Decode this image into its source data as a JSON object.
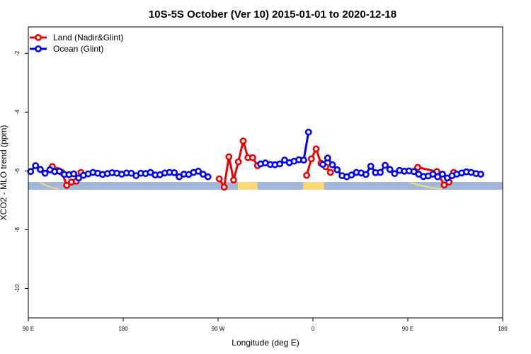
{
  "chart_data": {
    "type": "line",
    "title": "10S-5S October (Ver 10)   2015-01-01 to 2020-12-18",
    "xlabel": "Longitude (deg E)",
    "ylabel": "XCO2 - MLO trend (ppm)",
    "xlim": [
      90,
      450
    ],
    "ylim": [
      -11,
      -1.1
    ],
    "x_ticks": [
      {
        "value": 90,
        "label": "90 E"
      },
      {
        "value": 162,
        "label": "180"
      },
      {
        "value": 234,
        "label": "90 W"
      },
      {
        "value": 306,
        "label": "0"
      },
      {
        "value": 378,
        "label": "90 E"
      },
      {
        "value": 450,
        "label": "180"
      }
    ],
    "y_ticks": [
      {
        "value": -2,
        "label": "-2"
      },
      {
        "value": -4,
        "label": "-4"
      },
      {
        "value": -6,
        "label": "-6"
      },
      {
        "value": -8,
        "label": "-8"
      },
      {
        "value": -10,
        "label": "-10"
      }
    ],
    "grid": false,
    "legend_position": "top-left",
    "colors": {
      "land": "#ee0000",
      "ocean": "#0000ee",
      "ocean_band": "#a2b8d8",
      "land_band": "#f8d878"
    },
    "series": [
      {
        "name": "Land (Nadir&Glint)",
        "color": "#ee0000",
        "segments": [
          [
            [
              108.2,
              -5.85
            ],
            [
              111.9,
              -5.98
            ],
            [
              115.5,
              -6.05
            ],
            [
              119.1,
              -6.49
            ],
            [
              122.7,
              -6.38
            ],
            [
              126.4,
              -6.35
            ],
            [
              130,
              -6.05
            ]
          ],
          [
            [
              234.9,
              -6.27
            ],
            [
              238.6,
              -6.55
            ],
            [
              242.2,
              -5.52
            ],
            [
              245.8,
              -6.31
            ],
            [
              249.4,
              -5.69
            ],
            [
              253.1,
              -4.98
            ],
            [
              256.7,
              -5.55
            ],
            [
              260.3,
              -5.55
            ],
            [
              264,
              -5.82
            ]
          ],
          [
            [
              301.2,
              -6.15
            ],
            [
              304.8,
              -5.59
            ],
            [
              308.4,
              -5.25
            ],
            [
              312.1,
              -5.74
            ],
            [
              315.7,
              -5.86
            ],
            [
              319.3,
              -6.05
            ]
          ],
          [
            [
              385.5,
              -5.88
            ],
            [
              400.1,
              -6.02
            ],
            [
              405.6,
              -6.48
            ],
            [
              409.2,
              -6.38
            ],
            [
              412.8,
              -6.05
            ]
          ]
        ]
      },
      {
        "name": "Ocean (Glint)",
        "color": "#0000ee",
        "segments": [
          [
            [
              91.8,
              -6.02
            ],
            [
              95.5,
              -5.82
            ],
            [
              99.1,
              -5.95
            ],
            [
              102.7,
              -6.08
            ],
            [
              106.4,
              -5.96
            ],
            [
              110,
              -6.02
            ],
            [
              113.6,
              -6.01
            ],
            [
              117.3,
              -6.12
            ],
            [
              120.9,
              -6.13
            ],
            [
              124.5,
              -6.1
            ],
            [
              128.2,
              -6.24
            ],
            [
              131.8,
              -6.15
            ],
            [
              135.4,
              -6.1
            ],
            [
              139.1,
              -6.05
            ],
            [
              142.7,
              -6.08
            ],
            [
              146.3,
              -6.12
            ],
            [
              150,
              -6.09
            ],
            [
              153.6,
              -6.06
            ],
            [
              157.2,
              -6.08
            ],
            [
              160.9,
              -6.11
            ],
            [
              164.5,
              -6.07
            ],
            [
              168.1,
              -6.08
            ],
            [
              171.8,
              -6.16
            ],
            [
              175.4,
              -6.08
            ],
            [
              179,
              -6.09
            ],
            [
              182.7,
              -6.05
            ],
            [
              186.3,
              -6.14
            ],
            [
              189.9,
              -6.13
            ],
            [
              193.6,
              -6.07
            ],
            [
              197.2,
              -6.05
            ],
            [
              200.8,
              -6.06
            ],
            [
              204.5,
              -6.2
            ],
            [
              208.1,
              -6.11
            ],
            [
              211.7,
              -6.12
            ],
            [
              215.4,
              -6.05
            ],
            [
              219,
              -6.01
            ],
            [
              222.6,
              -6.11
            ],
            [
              226.3,
              -6.2
            ]
          ],
          [
            [
              266.3,
              -5.76
            ],
            [
              269.9,
              -5.73
            ],
            [
              273.6,
              -5.78
            ],
            [
              277.2,
              -5.79
            ],
            [
              280.8,
              -5.76
            ],
            [
              284.5,
              -5.63
            ],
            [
              288.1,
              -5.72
            ],
            [
              291.7,
              -5.67
            ],
            [
              295.3,
              -5.62
            ],
            [
              299,
              -5.63
            ],
            [
              302.6,
              -4.68
            ]
          ],
          [
            [
              313.5,
              -5.78
            ],
            [
              317.2,
              -5.56
            ],
            [
              320.8,
              -5.79
            ],
            [
              324.4,
              -5.96
            ],
            [
              328.1,
              -6.16
            ],
            [
              331.7,
              -6.2
            ],
            [
              335.3,
              -6.14
            ],
            [
              339,
              -6.05
            ],
            [
              342.6,
              -6.07
            ],
            [
              346.2,
              -6.12
            ],
            [
              349.9,
              -5.84
            ],
            [
              353.5,
              -6.06
            ],
            [
              357.1,
              -6.05
            ],
            [
              360.8,
              -5.81
            ],
            [
              364.4,
              -5.95
            ],
            [
              368,
              -6.09
            ],
            [
              371.7,
              -5.98
            ],
            [
              375.3,
              -6.01
            ],
            [
              378.9,
              -6
            ],
            [
              382.6,
              -6.02
            ],
            [
              386.2,
              -6.11
            ],
            [
              389.8,
              -6.19
            ],
            [
              393.5,
              -6.17
            ],
            [
              397.1,
              -6.11
            ],
            [
              400.7,
              -6.2
            ],
            [
              404.3,
              -6.11
            ],
            [
              408,
              -6.24
            ],
            [
              411.6,
              -6.16
            ],
            [
              415.2,
              -6.11
            ],
            [
              418.9,
              -6.07
            ],
            [
              422.5,
              -6.03
            ],
            [
              426.1,
              -6.05
            ],
            [
              429.8,
              -6.09
            ],
            [
              433.4,
              -6.11
            ]
          ]
        ]
      }
    ]
  }
}
